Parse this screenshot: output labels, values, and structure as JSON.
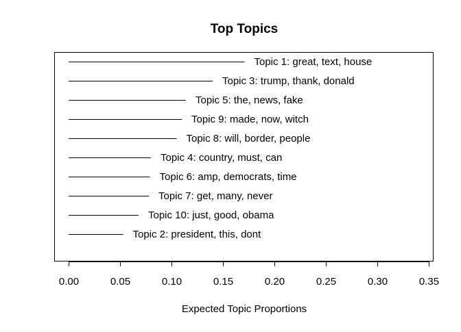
{
  "chart_data": {
    "type": "bar",
    "title": "Top Topics",
    "xlabel": "Expected Topic Proportions",
    "ylabel": "",
    "xlim": [
      0,
      0.35
    ],
    "xticks": [
      "0.00",
      "0.05",
      "0.10",
      "0.15",
      "0.20",
      "0.25",
      "0.30",
      "0.35"
    ],
    "orientation": "horizontal",
    "grid": false,
    "items": [
      {
        "label": "Topic 1: great, text, house",
        "value": 0.171
      },
      {
        "label": "Topic 3: trump, thank, donald",
        "value": 0.14
      },
      {
        "label": "Topic 5: the, news, fake",
        "value": 0.114
      },
      {
        "label": "Topic 9: made, now, witch",
        "value": 0.11
      },
      {
        "label": "Topic 8: will, border, people",
        "value": 0.105
      },
      {
        "label": "Topic 4: country, must, can",
        "value": 0.08
      },
      {
        "label": "Topic 6: amp, democrats, time",
        "value": 0.079
      },
      {
        "label": "Topic 7: get, many, never",
        "value": 0.078
      },
      {
        "label": "Topic 10: just, good, obama",
        "value": 0.068
      },
      {
        "label": "Topic 2: president, this, dont",
        "value": 0.053
      }
    ]
  }
}
